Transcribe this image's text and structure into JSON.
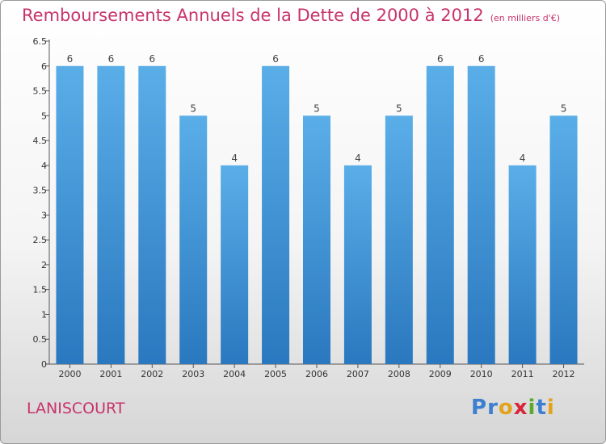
{
  "header": {
    "title": "Remboursements Annuels de la Dette de 2000 à 2012",
    "unit": "(en milliers d'€)"
  },
  "commune": "LANISCOURT",
  "logo": {
    "letters": [
      {
        "ch": "P",
        "color": "#3b7fd0"
      },
      {
        "ch": "r",
        "color": "#3b7fd0"
      },
      {
        "ch": "o",
        "color": "#e3a21a"
      },
      {
        "ch": "x",
        "color": "#d8263a"
      },
      {
        "ch": "i",
        "color": "#5aaa2e"
      },
      {
        "ch": "t",
        "color": "#3b7fd0"
      },
      {
        "ch": "i",
        "color": "#e3a21a"
      }
    ]
  },
  "chart_data": {
    "type": "bar",
    "title": "Remboursements Annuels de la Dette de 2000 à 2012",
    "xlabel": "",
    "ylabel": "",
    "categories": [
      "2000",
      "2001",
      "2002",
      "2003",
      "2004",
      "2005",
      "2006",
      "2007",
      "2008",
      "2009",
      "2010",
      "2011",
      "2012"
    ],
    "values": [
      6,
      6,
      6,
      5,
      4,
      6,
      5,
      4,
      5,
      6,
      6,
      4,
      5
    ],
    "yticks": [
      "0",
      "0.5",
      "1",
      "1.5",
      "2",
      "2.5",
      "3",
      "3.5",
      "4",
      "4.5",
      "5",
      "5.5",
      "6",
      "6.5"
    ],
    "ylim": [
      0,
      6.5
    ],
    "grid": false,
    "colors": {
      "bar_top": "#5aaee8",
      "bar_bottom": "#2a78bf",
      "axis": "#555555"
    }
  }
}
